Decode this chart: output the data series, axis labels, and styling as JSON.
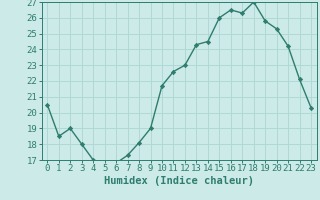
{
  "title": "",
  "xlabel": "Humidex (Indice chaleur)",
  "ylabel": "",
  "x_values": [
    0,
    1,
    2,
    3,
    4,
    5,
    6,
    7,
    8,
    9,
    10,
    11,
    12,
    13,
    14,
    15,
    16,
    17,
    18,
    19,
    20,
    21,
    22,
    23
  ],
  "y_values": [
    20.5,
    18.5,
    19.0,
    18.0,
    17.0,
    16.8,
    16.8,
    17.3,
    18.1,
    19.0,
    21.7,
    22.6,
    23.0,
    24.3,
    24.5,
    26.0,
    26.5,
    26.3,
    27.0,
    25.8,
    25.3,
    24.2,
    22.1,
    20.3
  ],
  "line_color": "#2e7d6e",
  "marker": "D",
  "marker_size": 2.2,
  "bg_color": "#cceae7",
  "grid_color": "#b0d8d4",
  "ylim": [
    17,
    27
  ],
  "yticks": [
    17,
    18,
    19,
    20,
    21,
    22,
    23,
    24,
    25,
    26,
    27
  ],
  "xlim": [
    -0.5,
    23.5
  ],
  "xticks": [
    0,
    1,
    2,
    3,
    4,
    5,
    6,
    7,
    8,
    9,
    10,
    11,
    12,
    13,
    14,
    15,
    16,
    17,
    18,
    19,
    20,
    21,
    22,
    23
  ],
  "tick_color": "#2e7d6e",
  "label_color": "#2e7d6e",
  "xlabel_fontsize": 7.5,
  "tick_fontsize": 6.5,
  "line_width": 1.0
}
